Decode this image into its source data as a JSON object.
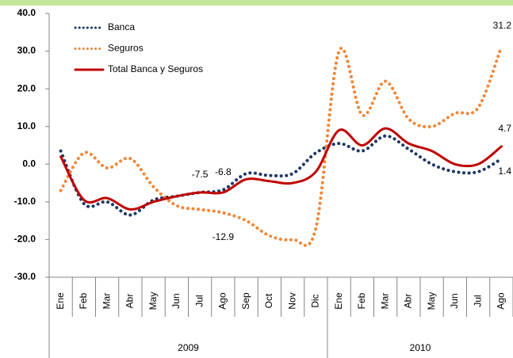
{
  "chart_data": {
    "type": "line",
    "categories": [
      "Ene",
      "Feb",
      "Mar",
      "Abr",
      "May",
      "Jun",
      "Jul",
      "Ago",
      "Sep",
      "Oct",
      "Nov",
      "Dic",
      "Ene",
      "Feb",
      "Mar",
      "Abr",
      "May",
      "Jun",
      "Jul",
      "Ago"
    ],
    "groups": [
      {
        "label": "2009",
        "count": 12
      },
      {
        "label": "2010",
        "count": 8
      }
    ],
    "ylim": [
      -30,
      40
    ],
    "yticks": [
      {
        "value": -30,
        "label": "-30.0"
      },
      {
        "value": -20,
        "label": "-20.0"
      },
      {
        "value": -10,
        "label": "-10.0"
      },
      {
        "value": 0,
        "label": "0.0"
      },
      {
        "value": 10,
        "label": "10.0"
      },
      {
        "value": 20,
        "label": "20.0"
      },
      {
        "value": 30,
        "label": "30.0"
      },
      {
        "value": 40,
        "label": "40.0"
      }
    ],
    "legend": "top-left",
    "series": [
      {
        "name": "Banca",
        "color": "#1f3864",
        "dash": "dotted",
        "values": [
          3.5,
          -10.5,
          -10,
          -13.5,
          -9.5,
          -8.5,
          -7.5,
          -6.8,
          -2.5,
          -3,
          -2.5,
          3,
          5.5,
          3.5,
          7.5,
          4,
          0,
          -2,
          -2,
          1.4
        ],
        "value_labels": [
          null,
          null,
          null,
          null,
          null,
          null,
          null,
          "-6.8",
          null,
          null,
          null,
          null,
          null,
          null,
          null,
          null,
          null,
          null,
          null,
          "1.4"
        ]
      },
      {
        "name": "Seguros",
        "color": "#f0883a",
        "dash": "dotted",
        "values": [
          -7,
          3,
          -1,
          1.5,
          -6,
          -11,
          -12,
          -12.9,
          -15,
          -19,
          -20,
          -17,
          30,
          13,
          22,
          12,
          10,
          13.5,
          15,
          31.2
        ],
        "value_labels": [
          null,
          null,
          null,
          null,
          null,
          null,
          null,
          "-12.9",
          null,
          null,
          null,
          null,
          null,
          null,
          null,
          null,
          null,
          null,
          null,
          "31.2"
        ]
      },
      {
        "name": "Total Banca y Seguros",
        "color": "#c00000",
        "dash": "solid",
        "values": [
          2,
          -9.5,
          -9,
          -12,
          -10,
          -8.5,
          -7.5,
          -7.5,
          -4,
          -4.5,
          -5,
          -2,
          9,
          5,
          9.5,
          5.5,
          3.5,
          0,
          0,
          4.7
        ],
        "value_labels": [
          null,
          null,
          null,
          null,
          null,
          null,
          "-7.5",
          null,
          null,
          null,
          null,
          null,
          null,
          null,
          null,
          null,
          null,
          null,
          null,
          "4.7"
        ]
      }
    ]
  }
}
